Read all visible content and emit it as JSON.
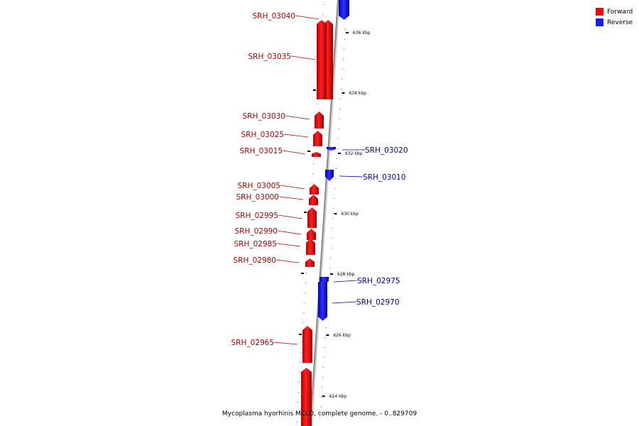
{
  "legend": {
    "forward_label": "Forward",
    "reverse_label": "Reverse",
    "forward_color": "#ff0000",
    "reverse_color": "#1a1aff"
  },
  "caption": "Mycoplasma hyorhinis MCLD, complete genome. - 0..829709",
  "colors": {
    "forward_text": "#b00000",
    "reverse_text": "#0000a0",
    "backbone": "#909090"
  },
  "ticks": [
    "636 kbp",
    "634 kbp",
    "632 kbp",
    "630 kbp",
    "628 kbp",
    "626 kbp",
    "624 kbp"
  ],
  "genes": [
    {
      "id": "SRH_03040",
      "strand": "forward"
    },
    {
      "id": "SRH_03035",
      "strand": "forward"
    },
    {
      "id": "SRH_03030",
      "strand": "forward"
    },
    {
      "id": "SRH_03025",
      "strand": "forward"
    },
    {
      "id": "SRH_03015",
      "strand": "forward"
    },
    {
      "id": "SRH_03020",
      "strand": "reverse"
    },
    {
      "id": "SRH_03010",
      "strand": "reverse"
    },
    {
      "id": "SRH_03005",
      "strand": "forward"
    },
    {
      "id": "SRH_03000",
      "strand": "forward"
    },
    {
      "id": "SRH_02995",
      "strand": "forward"
    },
    {
      "id": "SRH_02990",
      "strand": "forward"
    },
    {
      "id": "SRH_02985",
      "strand": "forward"
    },
    {
      "id": "SRH_02980",
      "strand": "forward"
    },
    {
      "id": "SRH_02975",
      "strand": "reverse"
    },
    {
      "id": "SRH_02970",
      "strand": "reverse"
    },
    {
      "id": "SRH_02965",
      "strand": "forward"
    },
    {
      "id": "",
      "strand": "forward"
    },
    {
      "id": "",
      "strand": "reverse"
    }
  ]
}
